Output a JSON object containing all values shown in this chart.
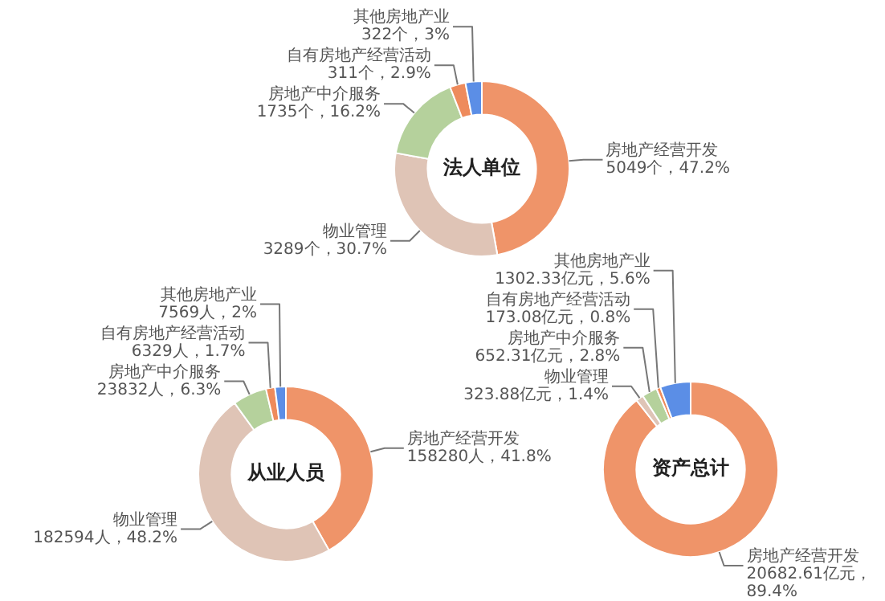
{
  "chart_data": [
    {
      "type": "donut",
      "title": "法人单位",
      "categories": [
        "房地产经营开发",
        "物业管理",
        "房地产中介服务",
        "自有房地产经营活动",
        "其他房地产业"
      ],
      "values": [
        5049,
        3289,
        1735,
        311,
        322
      ],
      "colors": [
        "#ef9469",
        "#dfc4b6",
        "#b5d19c",
        "#ee8b5c",
        "#5b8ee6"
      ],
      "value_labels": [
        "5049个，47.2%",
        "3289个，30.7%",
        "1735个，16.2%",
        "311个，2.9%",
        "322个，3%"
      ]
    },
    {
      "type": "donut",
      "title": "从业人员",
      "categories": [
        "房地产经营开发",
        "物业管理",
        "房地产中介服务",
        "自有房地产经营活动",
        "其他房地产业"
      ],
      "values": [
        158280,
        182594,
        23832,
        6329,
        7569
      ],
      "colors": [
        "#ef9469",
        "#dfc4b6",
        "#b5d19c",
        "#ee8b5c",
        "#5b8ee6"
      ],
      "value_labels": [
        "158280人，41.8%",
        "182594人，48.2%",
        "23832人，6.3%",
        "6329人，1.7%",
        "7569人，2%"
      ]
    },
    {
      "type": "donut",
      "title": "资产总计",
      "categories": [
        "房地产经营开发",
        "物业管理",
        "房地产中介服务",
        "自有房地产经营活动",
        "其他房地产业"
      ],
      "values": [
        20682.61,
        323.88,
        652.31,
        173.08,
        1302.33
      ],
      "colors": [
        "#ef9469",
        "#dfc4b6",
        "#b5d19c",
        "#ee8b5c",
        "#5b8ee6"
      ],
      "value_labels": [
        "20682.61亿元，89.4%",
        "323.88亿元，1.4%",
        "652.31亿元，2.8%",
        "173.08亿元，0.8%",
        "1302.33亿元，5.6%"
      ]
    }
  ]
}
